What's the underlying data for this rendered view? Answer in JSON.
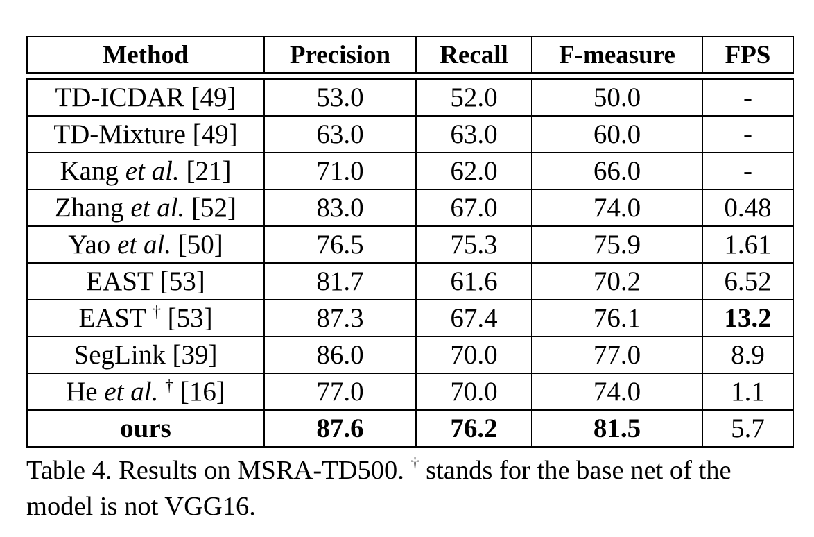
{
  "table": {
    "header": [
      "Method",
      "Precision",
      "Recall",
      "F-measure",
      "FPS"
    ],
    "rows": [
      [
        [
          "TD-ICDAR [49]"
        ],
        [
          "53.0"
        ],
        [
          "52.0"
        ],
        [
          "50.0"
        ],
        [
          "-"
        ]
      ],
      [
        [
          "TD-Mixture [49]"
        ],
        [
          "63.0"
        ],
        [
          "63.0"
        ],
        [
          "60.0"
        ],
        [
          "-"
        ]
      ],
      [
        [
          "Kang ",
          {
            "text": "et al.",
            "italic": true
          },
          " [21]"
        ],
        [
          "71.0"
        ],
        [
          "62.0"
        ],
        [
          "66.0"
        ],
        [
          "-"
        ]
      ],
      [
        [
          "Zhang ",
          {
            "text": "et al.",
            "italic": true
          },
          " [52]"
        ],
        [
          "83.0"
        ],
        [
          "67.0"
        ],
        [
          "74.0"
        ],
        [
          "0.48"
        ]
      ],
      [
        [
          "Yao ",
          {
            "text": "et al.",
            "italic": true
          },
          " [50]"
        ],
        [
          "76.5"
        ],
        [
          "75.3"
        ],
        [
          "75.9"
        ],
        [
          "1.61"
        ]
      ],
      [
        [
          "EAST [53]"
        ],
        [
          "81.7"
        ],
        [
          "61.6"
        ],
        [
          "70.2"
        ],
        [
          "6.52"
        ]
      ],
      [
        [
          "EAST ",
          {
            "text": "†",
            "sup": true
          },
          " [53]"
        ],
        [
          "87.3"
        ],
        [
          "67.4"
        ],
        [
          "76.1"
        ],
        [
          {
            "text": "13.2",
            "bold": true
          }
        ]
      ],
      [
        [
          "SegLink [39]"
        ],
        [
          "86.0"
        ],
        [
          "70.0"
        ],
        [
          "77.0"
        ],
        [
          "8.9"
        ]
      ],
      [
        [
          "He ",
          {
            "text": "et al.",
            "italic": true
          },
          " ",
          {
            "text": "†",
            "sup": true
          },
          " [16]"
        ],
        [
          "77.0"
        ],
        [
          "70.0"
        ],
        [
          "74.0"
        ],
        [
          "1.1"
        ]
      ],
      [
        [
          {
            "text": "ours",
            "bold": true
          }
        ],
        [
          {
            "text": "87.6",
            "bold": true
          }
        ],
        [
          {
            "text": "76.2",
            "bold": true
          }
        ],
        [
          {
            "text": "81.5",
            "bold": true
          }
        ],
        [
          "5.7"
        ]
      ]
    ]
  },
  "caption": [
    "Table 4. Results on MSRA-TD500. ",
    {
      "text": "†",
      "sup": true
    },
    " stands for the base net of the model is not VGG16."
  ]
}
